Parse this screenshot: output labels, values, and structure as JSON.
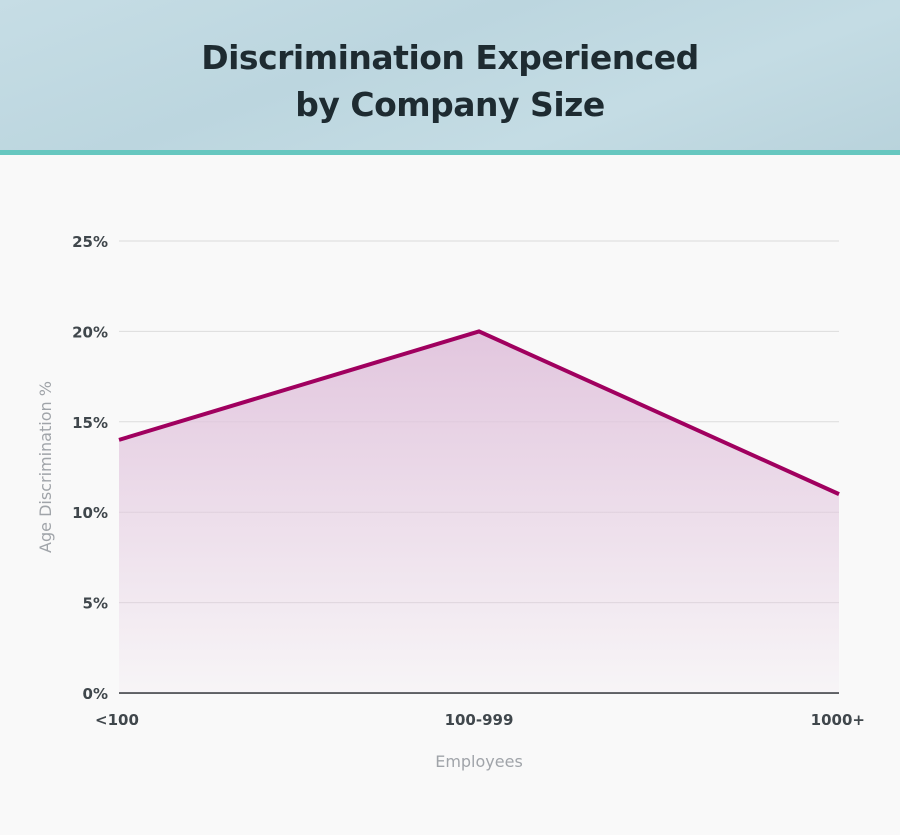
{
  "header": {
    "title_line1": "Discrimination Experienced",
    "title_line2": "by Company Size"
  },
  "chart_data": {
    "type": "area",
    "title": "Discrimination Experienced by Company Size",
    "xlabel": "Employees",
    "ylabel": "Age Discrimination %",
    "categories": [
      "<100",
      "100-999",
      "1000+"
    ],
    "values": [
      14,
      20,
      11
    ],
    "ylim": [
      0,
      25
    ],
    "yticks": [
      0,
      5,
      10,
      15,
      20,
      25
    ],
    "ytick_labels": [
      "0%",
      "5%",
      "10%",
      "15%",
      "20%",
      "25%"
    ],
    "grid": true,
    "legend": "none",
    "line_color": "#a0005f",
    "fill_color": "#e4c9e0"
  }
}
